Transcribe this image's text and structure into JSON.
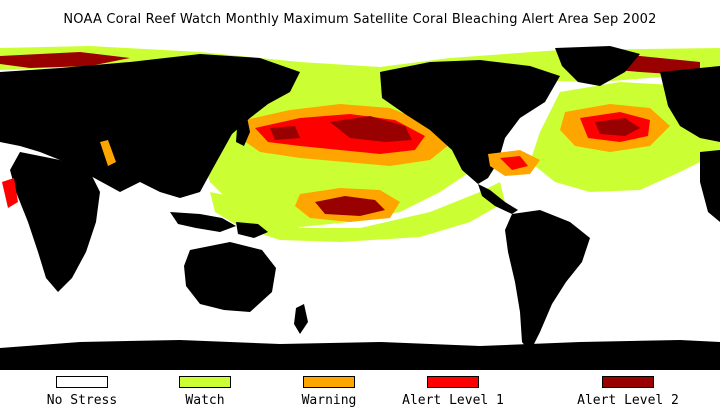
{
  "title": "NOAA Coral Reef Watch Monthly Maximum Satellite Coral Bleaching Alert Area   Sep 2002",
  "colors": {
    "land": "#000000",
    "no_stress": "#ffffff",
    "watch": "#ccff33",
    "warning": "#ffa500",
    "alert1": "#ff0000",
    "alert2": "#990000"
  },
  "legend": [
    {
      "label": "No Stress",
      "color": "#ffffff"
    },
    {
      "label": "Watch",
      "color": "#ccff33"
    },
    {
      "label": "Warning",
      "color": "#ffa500"
    },
    {
      "label": "Alert Level 1",
      "color": "#ff0000"
    },
    {
      "label": "Alert Level 2",
      "color": "#990000"
    }
  ]
}
